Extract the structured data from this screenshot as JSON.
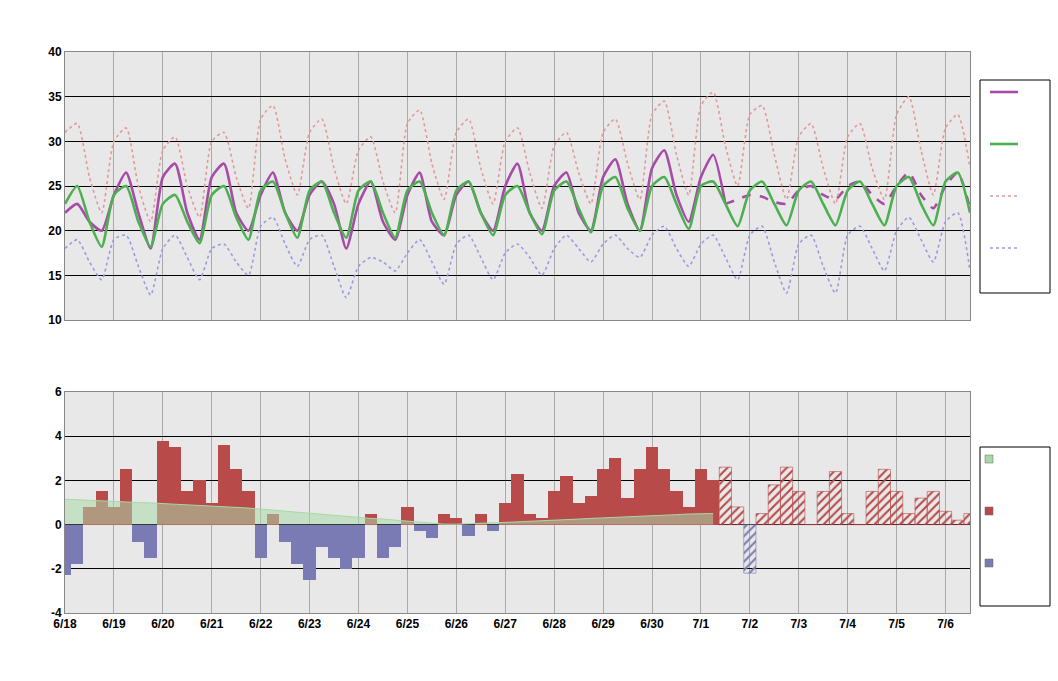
{
  "chart_data": [
    {
      "type": "line",
      "categories": [
        "6/18",
        null,
        null,
        null,
        "6/19",
        null,
        null,
        null,
        "6/20",
        null,
        null,
        null,
        "6/21",
        null,
        null,
        null,
        "6/22",
        null,
        null,
        null,
        "6/23",
        null,
        null,
        null,
        "6/24",
        null,
        null,
        null,
        "6/25",
        null,
        null,
        null,
        "6/26",
        null,
        null,
        null,
        "6/27",
        null,
        null,
        null,
        "6/28",
        null,
        null,
        null,
        "6/29",
        null,
        null,
        null,
        "6/30",
        null,
        null,
        null,
        "7/1",
        null,
        null,
        null,
        "7/2",
        null,
        null,
        null,
        "7/3",
        null,
        null,
        null,
        "7/4",
        null,
        null,
        null,
        "7/5",
        null,
        null,
        null,
        "7/6",
        null,
        null
      ],
      "ylim": [
        10,
        40
      ],
      "yticks": [
        10,
        15,
        20,
        25,
        30,
        35,
        40
      ],
      "grid": true,
      "legend": "right",
      "series": [
        {
          "color": "#a64ca6",
          "line_style": "solid",
          "values": [
            22,
            23,
            21,
            20,
            24,
            26.5,
            22,
            18,
            26,
            27.5,
            22,
            19,
            26,
            27.5,
            22,
            20,
            24,
            26.5,
            22,
            20,
            24,
            25.5,
            23,
            18,
            23,
            25.5,
            21,
            19,
            24,
            26.5,
            21,
            19.5,
            24,
            25.5,
            22,
            20,
            25,
            27.5,
            22,
            20,
            25,
            26.5,
            22,
            20,
            26,
            28,
            23,
            20,
            27,
            29,
            24,
            21,
            26,
            28.5,
            23,
            null,
            null,
            null,
            null,
            null,
            null,
            null,
            null,
            null,
            null,
            null,
            null,
            null,
            null,
            null,
            null,
            null,
            null,
            null,
            null
          ]
        },
        {
          "color": "#a64ca6",
          "line_style": "dashed",
          "values": [
            null,
            null,
            null,
            null,
            null,
            null,
            null,
            null,
            null,
            null,
            null,
            null,
            null,
            null,
            null,
            null,
            null,
            null,
            null,
            null,
            null,
            null,
            null,
            null,
            null,
            null,
            null,
            null,
            null,
            null,
            null,
            null,
            null,
            null,
            null,
            null,
            null,
            null,
            null,
            null,
            null,
            null,
            null,
            null,
            null,
            null,
            null,
            null,
            null,
            null,
            null,
            null,
            null,
            null,
            23,
            23.5,
            24,
            23.8,
            23.2,
            23,
            24.5,
            25,
            24,
            23.5,
            25,
            25.5,
            24,
            23,
            25,
            26.5,
            24,
            22.5,
            25,
            26.5,
            22.5
          ]
        },
        {
          "color": "#4caf50",
          "line_style": "solid",
          "values": [
            23,
            25,
            21,
            18.2,
            24,
            25,
            21,
            18.2,
            23,
            24,
            21,
            18.6,
            24,
            25,
            21.5,
            19,
            24.5,
            25.5,
            22,
            19.2,
            24.5,
            25.5,
            22,
            19.2,
            24.5,
            25.5,
            22,
            19.2,
            24.5,
            25.5,
            22,
            19.5,
            24.5,
            25.5,
            22,
            19.5,
            24,
            25,
            22,
            19.6,
            24.5,
            25.5,
            22.5,
            19.8,
            25,
            26,
            22.5,
            20,
            25,
            26,
            23,
            20.2,
            25,
            25.5,
            23,
            20.5,
            24.5,
            25.5,
            23,
            20.6,
            24.5,
            25.5,
            23,
            20.6,
            24.5,
            25.5,
            23,
            20.6,
            25,
            26,
            23,
            20.6,
            25.5,
            26.5,
            22
          ]
        },
        {
          "color": "#e09a9a",
          "line_style": "dotted",
          "values": [
            31,
            32,
            26,
            22,
            30,
            31.5,
            25,
            21,
            29,
            30.5,
            25,
            21.5,
            30,
            31,
            26,
            22.5,
            32.5,
            34,
            28,
            24,
            31,
            32.5,
            27,
            23,
            29,
            30.5,
            25.5,
            22,
            32,
            33.5,
            27.5,
            23.5,
            31,
            32.5,
            27,
            23,
            30,
            31.5,
            26.5,
            22.5,
            29.5,
            31,
            26.5,
            23,
            31,
            32.5,
            27.5,
            23.5,
            33,
            34.5,
            28.5,
            24,
            34,
            35.5,
            29.5,
            25,
            33,
            34,
            28.5,
            23.5,
            30.5,
            32,
            27,
            23,
            30.5,
            32,
            27,
            23.5,
            33,
            35,
            29,
            24,
            31.5,
            33,
            27
          ]
        },
        {
          "color": "#9a9ae0",
          "line_style": "dotted",
          "values": [
            18,
            19,
            16.5,
            14.5,
            19,
            19.5,
            16,
            12.8,
            18,
            19.5,
            17,
            14.5,
            18,
            18.5,
            16.5,
            15,
            20.5,
            21.5,
            18.5,
            16,
            19,
            19.5,
            16,
            12.5,
            16,
            17,
            16.5,
            15.5,
            17.5,
            19,
            16.5,
            14,
            18.5,
            19.5,
            17,
            14.5,
            17.5,
            18.5,
            17,
            15,
            18,
            19.5,
            18,
            16.5,
            18.5,
            19.5,
            18,
            17,
            19.5,
            20.5,
            18,
            16,
            18.5,
            19.5,
            17,
            14.5,
            19.5,
            20.5,
            16.5,
            13,
            18.5,
            19.5,
            16,
            13,
            19.5,
            20.5,
            18,
            15.5,
            20,
            21.5,
            19,
            16.5,
            21,
            22,
            15.5
          ]
        }
      ]
    },
    {
      "type": "bar",
      "categories": [
        "6/18",
        null,
        null,
        null,
        "6/19",
        null,
        null,
        null,
        "6/20",
        null,
        null,
        null,
        "6/21",
        null,
        null,
        null,
        "6/22",
        null,
        null,
        null,
        "6/23",
        null,
        null,
        null,
        "6/24",
        null,
        null,
        null,
        "6/25",
        null,
        null,
        null,
        "6/26",
        null,
        null,
        null,
        "6/27",
        null,
        null,
        null,
        "6/28",
        null,
        null,
        null,
        "6/29",
        null,
        null,
        null,
        "6/30",
        null,
        null,
        null,
        "7/1",
        null,
        null,
        null,
        "7/2",
        null,
        null,
        null,
        "7/3",
        null,
        null,
        null,
        "7/4",
        null,
        null,
        null,
        "7/5",
        null,
        null,
        null,
        "7/6",
        null,
        null
      ],
      "ylim": [
        -4,
        6
      ],
      "yticks": [
        -4,
        -2,
        0,
        2,
        4,
        6
      ],
      "grid": true,
      "legend": "right",
      "series": [
        {
          "type": "area",
          "color": "#a8d8a8",
          "values": [
            1.15,
            1.12,
            1.1,
            1.08,
            1.05,
            1.03,
            1.0,
            0.98,
            0.95,
            0.93,
            0.9,
            0.88,
            0.85,
            0.82,
            0.8,
            0.75,
            0.7,
            0.65,
            0.6,
            0.55,
            0.5,
            0.45,
            0.4,
            0.35,
            0.3,
            0.28,
            0.25,
            0.2,
            0.15,
            0.1,
            0.05,
            0.02,
            0.02,
            0.03,
            0.05,
            0.08,
            0.1,
            0.12,
            0.15,
            0.18,
            0.2,
            0.22,
            0.25,
            0.28,
            0.3,
            0.32,
            0.35,
            0.38,
            0.4,
            0.42,
            0.45,
            0.48,
            0.5,
            0.5,
            null,
            null,
            null,
            null,
            null,
            null,
            null,
            null,
            null,
            null,
            null,
            null,
            null,
            null,
            null,
            null,
            null,
            null,
            null,
            null,
            null
          ]
        },
        {
          "type": "bar",
          "values": [
            -2.3,
            -1.8,
            0.8,
            1.5,
            0.8,
            2.5,
            -0.8,
            -1.5,
            3.8,
            3.5,
            1.5,
            2,
            1.0,
            3.6,
            2.5,
            1.5,
            -1.5,
            0.5,
            -0.8,
            -1.8,
            -2.5,
            -1.0,
            -1.5,
            -2.0,
            -1.5,
            0.5,
            -1.5,
            -1.0,
            0.8,
            -0.3,
            -0.6,
            0.5,
            0.3,
            -0.5,
            0.5,
            -0.3,
            1.0,
            2.3,
            0.5,
            0.3,
            1.5,
            2.2,
            1.0,
            1.3,
            2.5,
            3.0,
            1.2,
            2.5,
            3.5,
            2.5,
            1.5,
            0.8,
            2.5,
            2.0,
            null,
            null,
            null,
            null,
            null,
            null,
            null,
            null,
            null,
            null,
            null,
            null,
            null,
            null,
            null,
            null,
            null,
            null,
            null,
            null,
            null
          ],
          "colors": [
            "#7a7ab4",
            "#7a7ab4",
            "#b84a4a",
            "#b84a4a",
            "#b84a4a",
            "#b84a4a",
            "#7a7ab4",
            "#7a7ab4",
            "#b84a4a",
            "#b84a4a",
            "#b84a4a",
            "#b84a4a",
            "#b84a4a",
            "#b84a4a",
            "#b84a4a",
            "#b84a4a",
            "#7a7ab4",
            "#b84a4a",
            "#7a7ab4",
            "#7a7ab4",
            "#7a7ab4",
            "#7a7ab4",
            "#7a7ab4",
            "#7a7ab4",
            "#7a7ab4",
            "#b84a4a",
            "#7a7ab4",
            "#7a7ab4",
            "#b84a4a",
            "#7a7ab4",
            "#7a7ab4",
            "#b84a4a",
            "#b84a4a",
            "#7a7ab4",
            "#b84a4a",
            "#7a7ab4",
            "#b84a4a",
            "#b84a4a",
            "#b84a4a",
            "#b84a4a",
            "#b84a4a",
            "#b84a4a",
            "#b84a4a",
            "#b84a4a",
            "#b84a4a",
            "#b84a4a",
            "#b84a4a",
            "#b84a4a",
            "#b84a4a",
            "#b84a4a",
            "#b84a4a",
            "#b84a4a",
            "#b84a4a",
            "#b84a4a",
            null,
            null,
            null,
            null,
            null,
            null,
            null,
            null,
            null,
            null,
            null,
            null,
            null,
            null,
            null,
            null,
            null,
            null,
            null,
            null,
            null
          ]
        },
        {
          "type": "bar",
          "marker": "hatch",
          "values": [
            null,
            null,
            null,
            null,
            null,
            null,
            null,
            null,
            null,
            null,
            null,
            null,
            null,
            null,
            null,
            null,
            null,
            null,
            null,
            null,
            null,
            null,
            null,
            null,
            null,
            null,
            null,
            null,
            null,
            null,
            null,
            null,
            null,
            null,
            null,
            null,
            null,
            null,
            null,
            null,
            null,
            null,
            null,
            null,
            null,
            null,
            null,
            null,
            null,
            null,
            null,
            null,
            null,
            null,
            2.6,
            0.8,
            -2.2,
            0.5,
            1.8,
            2.6,
            1.5,
            0,
            1.5,
            2.4,
            0.5,
            0,
            1.5,
            2.5,
            1.5,
            0.5,
            1.2,
            1.5,
            0.6,
            0.2,
            0.5
          ],
          "colors": [
            null,
            null,
            null,
            null,
            null,
            null,
            null,
            null,
            null,
            null,
            null,
            null,
            null,
            null,
            null,
            null,
            null,
            null,
            null,
            null,
            null,
            null,
            null,
            null,
            null,
            null,
            null,
            null,
            null,
            null,
            null,
            null,
            null,
            null,
            null,
            null,
            null,
            null,
            null,
            null,
            null,
            null,
            null,
            null,
            null,
            null,
            null,
            null,
            null,
            null,
            null,
            null,
            null,
            null,
            "#b84a4a",
            "#b84a4a",
            "#7a7ab4",
            "#b84a4a",
            "#b84a4a",
            "#b84a4a",
            "#b84a4a",
            "#b84a4a",
            "#b84a4a",
            "#b84a4a",
            "#b84a4a",
            "#b84a4a",
            "#b84a4a",
            "#b84a4a",
            "#b84a4a",
            "#b84a4a",
            "#b84a4a",
            "#b84a4a",
            "#b84a4a",
            "#b84a4a",
            "#b84a4a"
          ]
        }
      ]
    }
  ]
}
